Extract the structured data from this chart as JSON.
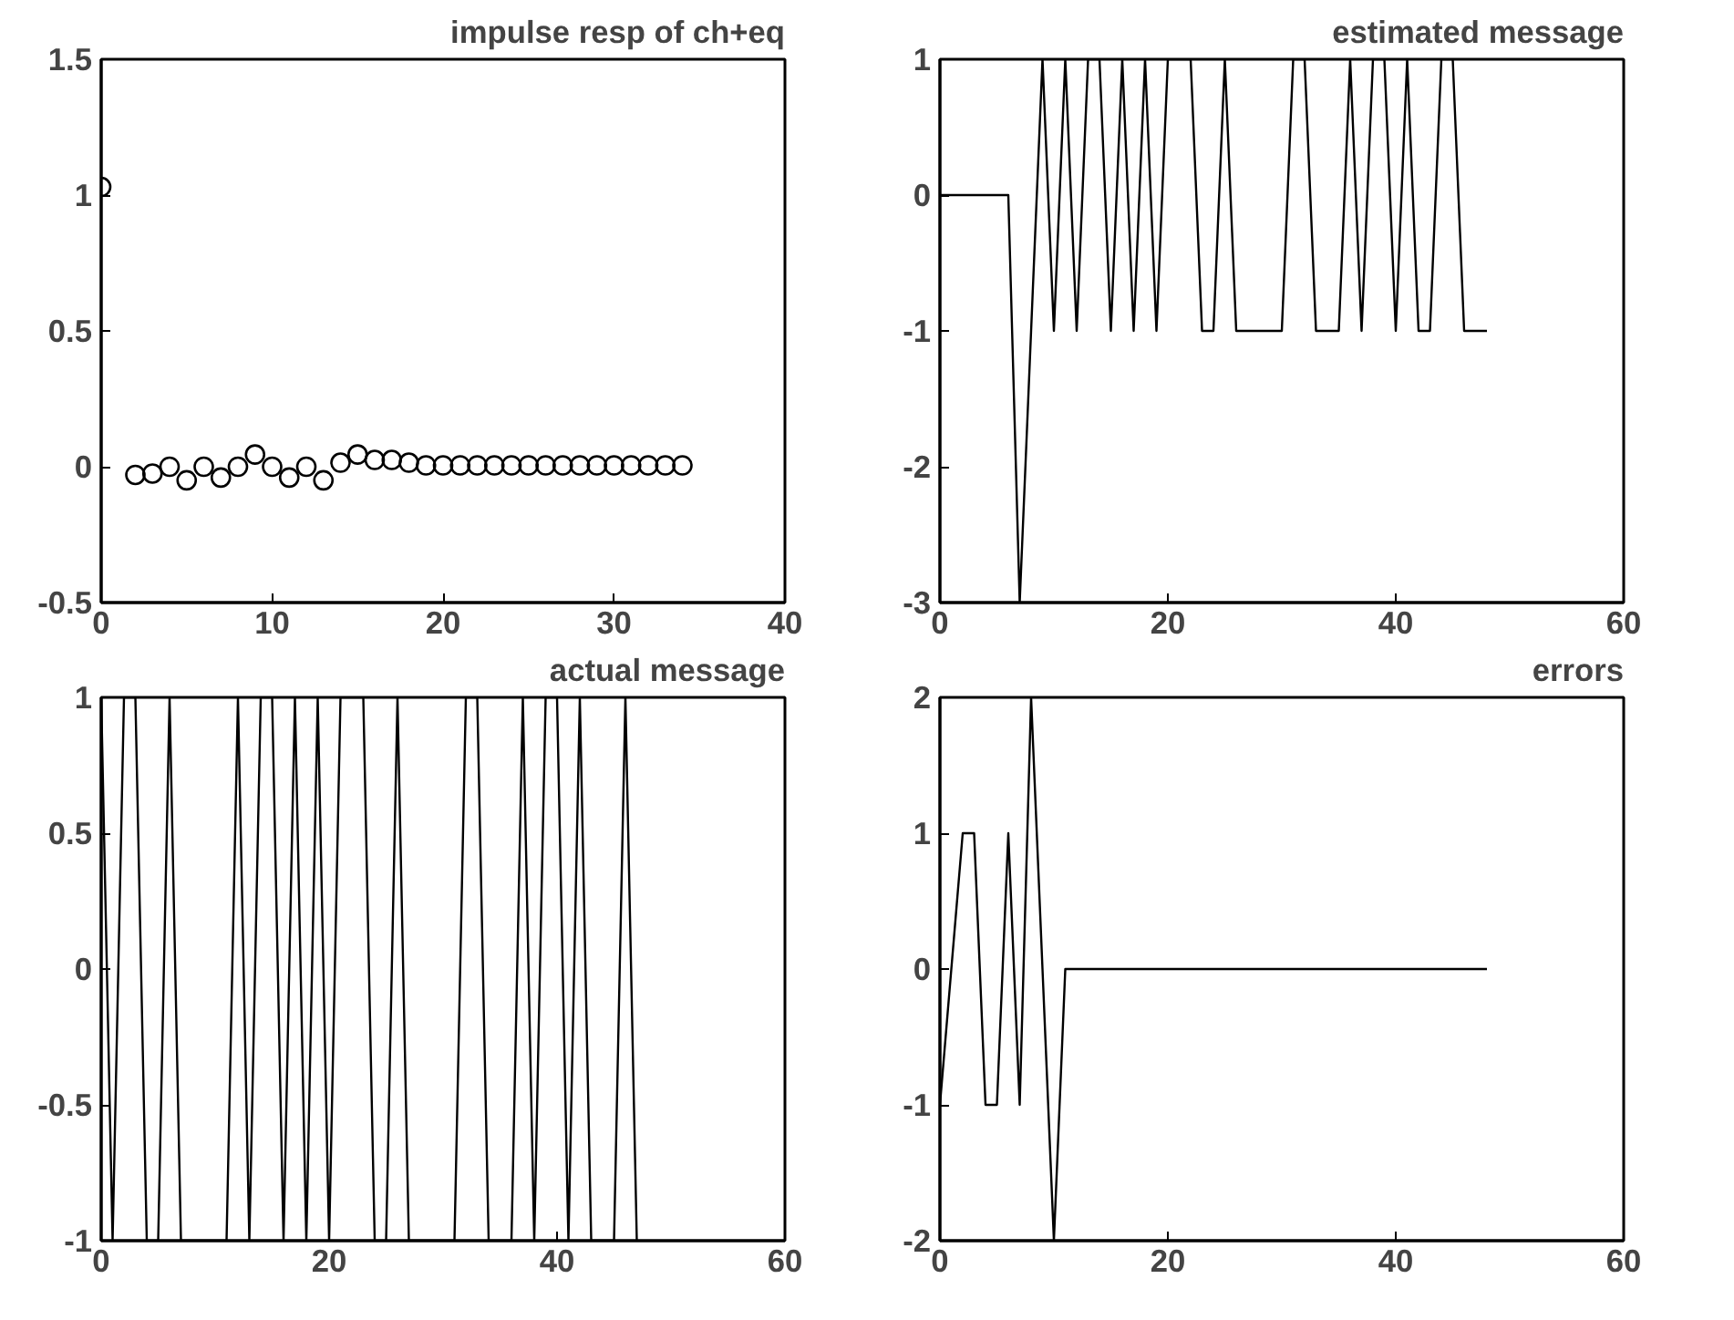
{
  "chart_data": [
    {
      "type": "scatter",
      "title": "impulse resp of ch+eq",
      "marker": "circle",
      "grid": false,
      "xlim": [
        0,
        40
      ],
      "ylim": [
        -0.5,
        1.5
      ],
      "xticks": [
        0,
        10,
        20,
        30,
        40
      ],
      "yticks": [
        -0.5,
        0,
        0.5,
        1,
        1.5
      ],
      "series": [
        {
          "color": "#000000",
          "x": [
            0,
            2,
            3,
            4,
            5,
            6,
            7,
            8,
            9,
            10,
            11,
            12,
            13,
            14,
            15,
            16,
            17,
            18,
            19,
            20,
            21,
            22,
            23,
            24,
            25,
            26,
            27,
            28,
            29,
            30,
            31,
            32,
            33,
            34
          ],
          "values": [
            1.03,
            -0.03,
            -0.025,
            0,
            -0.05,
            0,
            -0.04,
            0,
            0.045,
            0,
            -0.04,
            0,
            -0.05,
            0.015,
            0.045,
            0.025,
            0.025,
            0.015,
            0.005,
            0.005,
            0.005,
            0.005,
            0.005,
            0.005,
            0.005,
            0.005,
            0.005,
            0.005,
            0.005,
            0.005,
            0.005,
            0.005,
            0.005,
            0.005
          ]
        }
      ]
    },
    {
      "type": "line",
      "title": "estimated message",
      "marker": "none",
      "line_style": "solid",
      "grid": false,
      "xlim": [
        0,
        60
      ],
      "ylim": [
        -3,
        1
      ],
      "xticks": [
        0,
        20,
        40,
        60
      ],
      "yticks": [
        -3,
        -2,
        -1,
        0,
        1
      ],
      "series": [
        {
          "color": "#000000",
          "x": [
            0,
            1,
            2,
            3,
            4,
            5,
            6,
            7,
            8,
            9,
            10,
            11,
            12,
            13,
            14,
            15,
            16,
            17,
            18,
            19,
            20,
            21,
            22,
            23,
            24,
            25,
            26,
            27,
            28,
            29,
            30,
            31,
            32,
            33,
            34,
            35,
            36,
            37,
            38,
            39,
            40,
            41,
            42,
            43,
            44,
            45,
            46,
            47,
            48
          ],
          "values": [
            0,
            0,
            0,
            0,
            0,
            0,
            0,
            -3,
            -1,
            1,
            -1,
            1,
            -1,
            1,
            1,
            -1,
            1,
            -1,
            1,
            -1,
            1,
            1,
            1,
            -1,
            -1,
            1,
            -1,
            -1,
            -1,
            -1,
            -1,
            1,
            1,
            -1,
            -1,
            -1,
            1,
            -1,
            1,
            1,
            -1,
            1,
            -1,
            -1,
            1,
            1,
            -1,
            -1,
            -1
          ]
        }
      ]
    },
    {
      "type": "line",
      "title": "actual message",
      "marker": "none",
      "line_style": "solid",
      "grid": false,
      "xlim": [
        0,
        60
      ],
      "ylim": [
        -1,
        1
      ],
      "xticks": [
        0,
        20,
        40,
        60
      ],
      "yticks": [
        -1,
        -0.5,
        0,
        0.5,
        1
      ],
      "series": [
        {
          "color": "#000000",
          "x": [
            0,
            1,
            2,
            3,
            4,
            5,
            6,
            7,
            8,
            9,
            10,
            11,
            12,
            13,
            14,
            15,
            16,
            17,
            18,
            19,
            20,
            21,
            22,
            23,
            24,
            25,
            26,
            27,
            28,
            29,
            30,
            31,
            32,
            33,
            34,
            35,
            36,
            37,
            38,
            39,
            40,
            41,
            42,
            43,
            44,
            45,
            46,
            47
          ],
          "values": [
            1,
            -1,
            1,
            1,
            -1,
            -1,
            1,
            -1,
            -1,
            -1,
            -1,
            -1,
            1,
            -1,
            1,
            1,
            -1,
            1,
            -1,
            1,
            -1,
            1,
            1,
            1,
            -1,
            -1,
            1,
            -1,
            -1,
            -1,
            -1,
            -1,
            1,
            1,
            -1,
            -1,
            -1,
            1,
            -1,
            1,
            1,
            -1,
            1,
            -1,
            -1,
            -1,
            1,
            -1
          ]
        }
      ]
    },
    {
      "type": "line",
      "title": "errors",
      "marker": "none",
      "line_style": "solid",
      "grid": false,
      "xlim": [
        0,
        60
      ],
      "ylim": [
        -2,
        2
      ],
      "xticks": [
        0,
        20,
        40,
        60
      ],
      "yticks": [
        -2,
        -1,
        0,
        1,
        2
      ],
      "series": [
        {
          "color": "#000000",
          "x": [
            0,
            1,
            2,
            3,
            4,
            5,
            6,
            7,
            8,
            9,
            10,
            11,
            12,
            13,
            14,
            15,
            16,
            17,
            18,
            19,
            20,
            21,
            22,
            23,
            24,
            25,
            26,
            27,
            28,
            29,
            30,
            31,
            32,
            33,
            34,
            35,
            36,
            37,
            38,
            39,
            40,
            41,
            42,
            43,
            44,
            45,
            46,
            47,
            48
          ],
          "values": [
            -1,
            0,
            1,
            1,
            -1,
            -1,
            1,
            -1,
            2,
            0,
            -2,
            0,
            0,
            0,
            0,
            0,
            0,
            0,
            0,
            0,
            0,
            0,
            0,
            0,
            0,
            0,
            0,
            0,
            0,
            0,
            0,
            0,
            0,
            0,
            0,
            0,
            0,
            0,
            0,
            0,
            0,
            0,
            0,
            0,
            0,
            0,
            0,
            0,
            0
          ]
        }
      ]
    }
  ]
}
